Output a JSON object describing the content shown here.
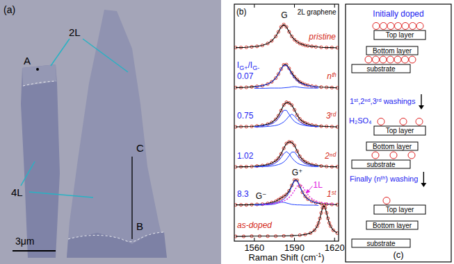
{
  "chart_data": {
    "type": "line",
    "xlim": [
      1545,
      1623
    ],
    "ylim": [
      0,
      10
    ],
    "xticks": [
      1560,
      1590,
      1620
    ],
    "tick_labels": "x",
    "x_label": [
      {
        "text": "Raman Shift (cm"
      },
      {
        "sup": "-1"
      },
      {
        "text": ")"
      }
    ],
    "series": [
      {
        "name": "pristine",
        "color": "#d42a20",
        "marker": "circle",
        "line_style": "solid",
        "x": [
          1546,
          1550,
          1554,
          1558,
          1562,
          1566,
          1570,
          1573,
          1576,
          1578,
          1580,
          1582,
          1584,
          1586,
          1588,
          1590,
          1592,
          1594,
          1596,
          1598,
          1600,
          1603,
          1606,
          1610,
          1614,
          1618,
          1622
        ],
        "values": [
          8.17,
          8.17,
          8.18,
          8.2,
          8.22,
          8.26,
          8.34,
          8.45,
          8.64,
          8.83,
          9.04,
          9.14,
          9.04,
          8.83,
          8.64,
          8.5,
          8.41,
          8.34,
          8.3,
          8.26,
          8.24,
          8.22,
          8.2,
          8.18,
          8.17,
          8.17,
          8.16
        ]
      },
      {
        "name": "nᵗʰ",
        "ratio": 0.07,
        "color": "#d42a20",
        "marker": "circle",
        "line_style": "solid",
        "x": [
          1546,
          1550,
          1554,
          1558,
          1562,
          1566,
          1570,
          1573,
          1576,
          1578,
          1580,
          1582,
          1584,
          1586,
          1588,
          1590,
          1592,
          1594,
          1596,
          1598,
          1600,
          1603,
          1606,
          1610,
          1614,
          1618,
          1622
        ],
        "values": [
          6.48,
          6.48,
          6.49,
          6.51,
          6.53,
          6.56,
          6.63,
          6.72,
          6.88,
          7.05,
          7.26,
          7.44,
          7.45,
          7.29,
          7.1,
          6.94,
          6.82,
          6.72,
          6.66,
          6.61,
          6.58,
          6.54,
          6.52,
          6.5,
          6.49,
          6.48,
          6.47
        ]
      },
      {
        "color": "#2040ff",
        "line_style": "solid",
        "x": [
          1560,
          1564,
          1568,
          1572,
          1575,
          1578,
          1580,
          1582,
          1584,
          1586,
          1588,
          1590,
          1592,
          1594,
          1597,
          1600,
          1604,
          1608
        ],
        "values": [
          6.51,
          6.54,
          6.59,
          6.68,
          6.81,
          7.04,
          7.25,
          7.42,
          7.42,
          7.25,
          7.04,
          6.87,
          6.76,
          6.68,
          6.61,
          6.56,
          6.53,
          6.5
        ]
      },
      {
        "color": "#2040ff",
        "line_style": "solid",
        "x": [
          1560,
          1564,
          1568,
          1572,
          1575,
          1578,
          1580,
          1582,
          1584,
          1586,
          1588,
          1590,
          1592,
          1594,
          1597,
          1600,
          1604,
          1608
        ],
        "values": [
          6.45,
          6.45,
          6.45,
          6.46,
          6.46,
          6.46,
          6.46,
          6.47,
          6.48,
          6.49,
          6.51,
          6.52,
          6.51,
          6.49,
          6.47,
          6.46,
          6.46,
          6.46
        ]
      },
      {
        "name": "3ʳᵈ",
        "ratio": 0.75,
        "color": "#d42a20",
        "marker": "circle",
        "line_style": "solid",
        "x": [
          1546,
          1550,
          1554,
          1558,
          1562,
          1566,
          1570,
          1573,
          1576,
          1578,
          1580,
          1582,
          1584,
          1586,
          1588,
          1590,
          1592,
          1594,
          1596,
          1598,
          1600,
          1603,
          1606,
          1610,
          1614,
          1618,
          1622
        ],
        "values": [
          4.82,
          4.83,
          4.83,
          4.84,
          4.86,
          4.89,
          4.94,
          5.01,
          5.14,
          5.29,
          5.51,
          5.75,
          5.86,
          5.83,
          5.74,
          5.54,
          5.32,
          5.16,
          5.05,
          4.99,
          4.94,
          4.9,
          4.87,
          4.85,
          4.84,
          4.83,
          4.82
        ]
      },
      {
        "color": "#2040ff",
        "line_style": "solid",
        "x": [
          1560,
          1564,
          1568,
          1572,
          1575,
          1578,
          1580,
          1582,
          1584,
          1586,
          1588,
          1590,
          1592,
          1594,
          1597,
          1600,
          1604,
          1608
        ],
        "values": [
          4.83,
          4.85,
          4.88,
          4.93,
          5.01,
          5.18,
          5.35,
          5.52,
          5.52,
          5.35,
          5.18,
          5.05,
          4.98,
          4.93,
          4.89,
          4.86,
          4.84,
          4.83
        ]
      },
      {
        "color": "#2040ff",
        "line_style": "solid",
        "x": [
          1560,
          1564,
          1568,
          1572,
          1575,
          1578,
          1580,
          1582,
          1584,
          1586,
          1588,
          1590,
          1592,
          1594,
          1597,
          1600,
          1604,
          1608
        ],
        "values": [
          4.82,
          4.82,
          4.83,
          4.85,
          4.87,
          4.91,
          4.96,
          5.03,
          5.14,
          5.28,
          5.36,
          5.28,
          5.14,
          5.03,
          4.93,
          4.88,
          4.85,
          4.83
        ]
      },
      {
        "name": "2ⁿᵈ",
        "ratio": 1.02,
        "color": "#d42a20",
        "marker": "circle",
        "line_style": "solid",
        "x": [
          1546,
          1550,
          1554,
          1558,
          1562,
          1566,
          1570,
          1573,
          1576,
          1578,
          1580,
          1582,
          1584,
          1586,
          1588,
          1590,
          1592,
          1594,
          1596,
          1598,
          1600,
          1603,
          1606,
          1610,
          1614,
          1618,
          1622
        ],
        "values": [
          3.13,
          3.14,
          3.14,
          3.15,
          3.17,
          3.19,
          3.23,
          3.29,
          3.39,
          3.5,
          3.68,
          3.92,
          4.12,
          4.19,
          4.17,
          4.04,
          3.8,
          3.58,
          3.44,
          3.35,
          3.29,
          3.23,
          3.2,
          3.17,
          3.15,
          3.14,
          3.14
        ]
      },
      {
        "color": "#2040ff",
        "line_style": "solid",
        "x": [
          1560,
          1564,
          1568,
          1572,
          1575,
          1578,
          1580,
          1582,
          1584,
          1586,
          1588,
          1590,
          1592,
          1594,
          1597,
          1600,
          1604,
          1608
        ],
        "values": [
          3.14,
          3.15,
          3.17,
          3.21,
          3.27,
          3.39,
          3.52,
          3.69,
          3.78,
          3.69,
          3.52,
          3.39,
          3.3,
          3.24,
          3.2,
          3.17,
          3.15,
          3.14
        ]
      },
      {
        "color": "#2040ff",
        "line_style": "solid",
        "x": [
          1560,
          1564,
          1568,
          1572,
          1575,
          1578,
          1580,
          1582,
          1584,
          1586,
          1588,
          1590,
          1592,
          1594,
          1597,
          1600,
          1604,
          1608
        ],
        "values": [
          3.13,
          3.14,
          3.15,
          3.16,
          3.19,
          3.23,
          3.27,
          3.34,
          3.45,
          3.61,
          3.76,
          3.76,
          3.61,
          3.45,
          3.3,
          3.23,
          3.18,
          3.15
        ]
      },
      {
        "name": "1ˢᵗ",
        "ratio": 8.3,
        "color": "#d42a20",
        "marker": "circle",
        "line_style": "solid",
        "x": [
          1546,
          1550,
          1554,
          1558,
          1562,
          1566,
          1570,
          1573,
          1576,
          1578,
          1580,
          1582,
          1584,
          1586,
          1588,
          1590,
          1592,
          1594,
          1596,
          1598,
          1600,
          1603,
          1606,
          1610,
          1614,
          1618,
          1622
        ],
        "values": [
          1.53,
          1.53,
          1.53,
          1.54,
          1.55,
          1.56,
          1.59,
          1.63,
          1.68,
          1.75,
          1.82,
          1.89,
          1.97,
          2.12,
          2.35,
          2.58,
          2.57,
          2.32,
          2.06,
          1.89,
          1.77,
          1.68,
          1.62,
          1.58,
          1.56,
          1.55,
          1.54
        ]
      },
      {
        "color": "#2040ff",
        "line_style": "solid",
        "x": [
          1560,
          1564,
          1568,
          1572,
          1575,
          1578,
          1580,
          1582,
          1584,
          1586,
          1588,
          1590,
          1592,
          1594,
          1597,
          1600,
          1604,
          1608
        ],
        "values": [
          1.54,
          1.55,
          1.56,
          1.58,
          1.61,
          1.65,
          1.7,
          1.77,
          1.88,
          2.05,
          2.3,
          2.55,
          2.55,
          2.3,
          1.95,
          1.77,
          1.65,
          1.6
        ]
      },
      {
        "color": "#2040ff",
        "line_style": "solid",
        "x": [
          1560,
          1564,
          1568,
          1572,
          1575,
          1578,
          1580,
          1582,
          1584,
          1586,
          1588,
          1590,
          1592,
          1594,
          1597,
          1600,
          1604,
          1608
        ],
        "values": [
          1.52,
          1.52,
          1.53,
          1.54,
          1.56,
          1.61,
          1.64,
          1.64,
          1.61,
          1.58,
          1.55,
          1.54,
          1.53,
          1.53,
          1.52,
          1.52,
          1.52,
          1.51
        ]
      },
      {
        "color": "#e020e0",
        "line_style": "dotted",
        "x": [
          1566,
          1572,
          1576,
          1580,
          1584,
          1587,
          1590,
          1592,
          1594,
          1596,
          1598,
          1601,
          1604,
          1608,
          1614,
          1620
        ],
        "values": [
          1.55,
          1.57,
          1.6,
          1.65,
          1.75,
          1.89,
          2.13,
          2.32,
          2.41,
          2.32,
          2.13,
          1.89,
          1.75,
          1.65,
          1.59,
          1.56
        ]
      },
      {
        "name": "as-doped",
        "color": "#d42a20",
        "marker": "circle",
        "line_style": "solid",
        "x": [
          1546,
          1552,
          1558,
          1564,
          1570,
          1576,
          1582,
          1588,
          1594,
          1598,
          1602,
          1605,
          1607,
          1608,
          1609,
          1610,
          1611,
          1612,
          1613,
          1614,
          1615,
          1616,
          1617,
          1619,
          1622
        ],
        "values": [
          0.2,
          0.2,
          0.21,
          0.21,
          0.21,
          0.21,
          0.22,
          0.23,
          0.25,
          0.28,
          0.34,
          0.46,
          0.63,
          0.77,
          0.96,
          1.19,
          1.41,
          1.51,
          1.41,
          1.19,
          0.96,
          0.77,
          0.63,
          0.46,
          0.34
        ]
      }
    ],
    "annotations": [
      {
        "text": "(b)",
        "x": 1546.5,
        "y": 9.55
      },
      {
        "text": "G",
        "x": 1580,
        "y": 9.42
      },
      {
        "text": "2L graphene",
        "x": 1593,
        "y": 9.55
      },
      {
        "parts": [
          {
            "text": "I"
          },
          {
            "sub": "G+"
          },
          {
            "text": "/I"
          },
          {
            "sub": "G-"
          }
        ],
        "x": 1547,
        "y": 7.3,
        "color": "#1c1cf0"
      },
      {
        "text": "G⁺",
        "x": 1588,
        "y": 2.78
      },
      {
        "text": "G⁻",
        "x": 1561,
        "y": 1.78
      },
      {
        "text": "1L",
        "x": 1604,
        "y": 2.25,
        "color": "#e020e0",
        "arrow_to": [
          1599,
          2.03
        ]
      }
    ]
  },
  "panel_a": {
    "letter": "(a)",
    "layer_labels": [
      "2L",
      "4L"
    ],
    "points": [
      "A",
      "B",
      "C"
    ],
    "scale_bar": "3μm"
  },
  "panel_c": {
    "letter": "(c)",
    "stages": [
      {
        "title": "Initially doped",
        "layers": [
          "Top layer",
          "Bottom layer",
          "substrate"
        ]
      },
      {
        "title": "1ˢᵗ,2ⁿᵈ,3ʳᵈ washings",
        "reagent": "H₂SO₄",
        "layers": [
          "Top layer",
          "Bottom layer",
          "substrate"
        ]
      },
      {
        "title": "Finally (nᵗʰ) washing",
        "layers": [
          "Top layer",
          "Bottom layer",
          "substrate"
        ]
      }
    ]
  }
}
